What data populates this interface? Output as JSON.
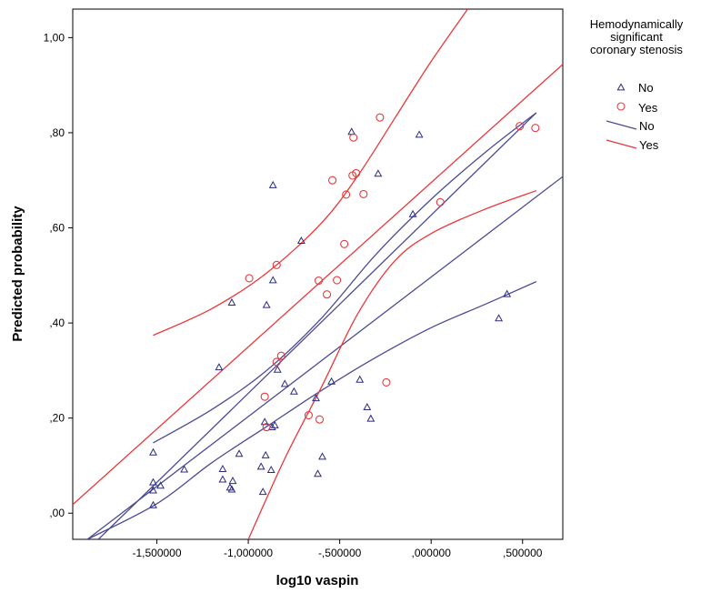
{
  "chart_data": {
    "type": "scatter",
    "xlabel": "log10 vaspin",
    "ylabel": "Predicted probability",
    "xlim": [
      -1.96,
      0.72
    ],
    "ylim": [
      -0.055,
      1.06
    ],
    "x_ticks": [
      {
        "value": -1.5,
        "label": "-1,500000"
      },
      {
        "value": -1.0,
        "label": "-1,000000"
      },
      {
        "value": -0.5,
        "label": "-,500000"
      },
      {
        "value": 0.0,
        "label": ",000000"
      },
      {
        "value": 0.5,
        "label": ",500000"
      }
    ],
    "y_ticks": [
      {
        "value": 0.0,
        "label": ",00"
      },
      {
        "value": 0.2,
        "label": ",20"
      },
      {
        "value": 0.4,
        "label": ",40"
      },
      {
        "value": 0.6,
        "label": ",60"
      },
      {
        "value": 0.8,
        "label": ",80"
      },
      {
        "value": 1.0,
        "label": "1,00"
      }
    ],
    "legend": {
      "title": "Hemodynamically significant coronary stenosis",
      "title_lines": [
        "Hemodynamically",
        "significant",
        "coronary stenosis"
      ],
      "entries": [
        {
          "label": "No",
          "kind": "marker",
          "marker": "triangle",
          "color": "#2b2b7f"
        },
        {
          "label": "Yes",
          "kind": "marker",
          "marker": "circle",
          "color": "#e8383b"
        },
        {
          "label": "No",
          "kind": "line",
          "color": "#4b4b95"
        },
        {
          "label": "Yes",
          "kind": "line",
          "color": "#e8383b"
        }
      ]
    },
    "colors": {
      "no": "#2b2b7f",
      "no_line": "#4b4b95",
      "yes": "#e8383b",
      "axes": "#000000"
    },
    "points_no": [
      [
        -1.52,
        0.128
      ],
      [
        -1.52,
        0.065
      ],
      [
        -1.52,
        0.048
      ],
      [
        -1.52,
        0.017
      ],
      [
        -1.48,
        0.058
      ],
      [
        -1.35,
        0.092
      ],
      [
        -1.16,
        0.307
      ],
      [
        -1.14,
        0.093
      ],
      [
        -1.14,
        0.071
      ],
      [
        -1.1,
        0.054
      ],
      [
        -1.09,
        0.05
      ],
      [
        -1.085,
        0.068
      ],
      [
        -1.09,
        0.443
      ],
      [
        -1.05,
        0.125
      ],
      [
        -0.93,
        0.098
      ],
      [
        -0.92,
        0.045
      ],
      [
        -0.91,
        0.192
      ],
      [
        -0.905,
        0.122
      ],
      [
        -0.9,
        0.438
      ],
      [
        -0.875,
        0.091
      ],
      [
        -0.87,
        0.181
      ],
      [
        -0.865,
        0.69
      ],
      [
        -0.865,
        0.49
      ],
      [
        -0.855,
        0.185
      ],
      [
        -0.84,
        0.302
      ],
      [
        -0.8,
        0.272
      ],
      [
        -0.75,
        0.256
      ],
      [
        -0.71,
        0.573
      ],
      [
        -0.63,
        0.242
      ],
      [
        -0.62,
        0.083
      ],
      [
        -0.595,
        0.119
      ],
      [
        -0.545,
        0.277
      ],
      [
        -0.435,
        0.802
      ],
      [
        -0.39,
        0.281
      ],
      [
        -0.35,
        0.223
      ],
      [
        -0.33,
        0.199
      ],
      [
        -0.29,
        0.714
      ],
      [
        -0.1,
        0.629
      ],
      [
        -0.065,
        0.796
      ],
      [
        0.37,
        0.41
      ],
      [
        0.415,
        0.461
      ]
    ],
    "points_yes": [
      [
        -0.995,
        0.494
      ],
      [
        -0.91,
        0.245
      ],
      [
        -0.9,
        0.181
      ],
      [
        -0.845,
        0.522
      ],
      [
        -0.845,
        0.318
      ],
      [
        -0.82,
        0.331
      ],
      [
        -0.67,
        0.206
      ],
      [
        -0.615,
        0.489
      ],
      [
        -0.61,
        0.197
      ],
      [
        -0.57,
        0.46
      ],
      [
        -0.54,
        0.7
      ],
      [
        -0.515,
        0.49
      ],
      [
        -0.475,
        0.566
      ],
      [
        -0.465,
        0.67
      ],
      [
        -0.43,
        0.71
      ],
      [
        -0.425,
        0.79
      ],
      [
        -0.41,
        0.715
      ],
      [
        -0.37,
        0.671
      ],
      [
        -0.28,
        0.832
      ],
      [
        -0.245,
        0.275
      ],
      [
        0.05,
        0.654
      ],
      [
        0.485,
        0.814
      ],
      [
        0.57,
        0.81
      ]
    ],
    "lines_no": {
      "fit": [
        [
          -1.82,
          -0.055
        ],
        [
          0.575,
          0.842
        ]
      ],
      "ci_upper": [
        [
          -1.52,
          0.148
        ],
        [
          -1.2,
          0.218
        ],
        [
          -0.9,
          0.3
        ],
        [
          -0.6,
          0.41
        ],
        [
          -0.3,
          0.545
        ],
        [
          0.0,
          0.66
        ],
        [
          0.3,
          0.76
        ],
        [
          0.575,
          0.842
        ]
      ],
      "ci_lower": [
        [
          -1.88,
          -0.055
        ],
        [
          -1.5,
          0.02
        ],
        [
          -1.2,
          0.106
        ],
        [
          -0.9,
          0.182
        ],
        [
          -0.6,
          0.258
        ],
        [
          -0.3,
          0.328
        ],
        [
          0.0,
          0.39
        ],
        [
          0.3,
          0.44
        ],
        [
          0.575,
          0.487
        ]
      ],
      "overall": [
        [
          -1.88,
          -0.055
        ],
        [
          0.72,
          0.708
        ]
      ]
    },
    "lines_yes": {
      "fit": [
        [
          -1.96,
          0.018
        ],
        [
          0.72,
          0.944
        ]
      ],
      "ci_upper": [
        [
          -1.52,
          0.374
        ],
        [
          -1.2,
          0.43
        ],
        [
          -0.9,
          0.505
        ],
        [
          -0.6,
          0.61
        ],
        [
          -0.4,
          0.71
        ],
        [
          -0.2,
          0.83
        ],
        [
          0.0,
          0.95
        ],
        [
          0.2,
          1.06
        ]
      ],
      "ci_lower": [
        [
          -1.0,
          -0.055
        ],
        [
          -0.8,
          0.115
        ],
        [
          -0.6,
          0.265
        ],
        [
          -0.4,
          0.42
        ],
        [
          -0.2,
          0.53
        ],
        [
          0.0,
          0.588
        ],
        [
          0.3,
          0.64
        ],
        [
          0.575,
          0.678
        ]
      ]
    }
  }
}
